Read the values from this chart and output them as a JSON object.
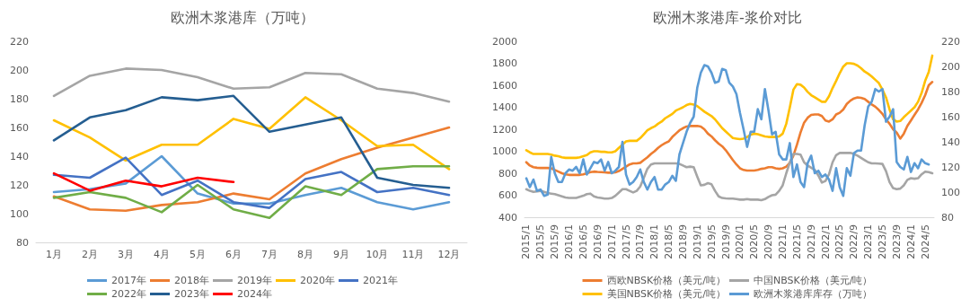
{
  "chart_data": [
    {
      "type": "line",
      "title": "欧洲木浆港库（万吨）",
      "categories": [
        "1月",
        "2月",
        "3月",
        "4月",
        "5月",
        "6月",
        "7月",
        "8月",
        "9月",
        "10月",
        "11月",
        "12月"
      ],
      "series": [
        {
          "name": "2017年",
          "color": "#5b9bd5",
          "values": [
            115,
            117,
            121,
            140,
            114,
            107,
            107,
            113,
            118,
            108,
            103,
            108
          ]
        },
        {
          "name": "2018年",
          "color": "#ed7d31",
          "values": [
            112,
            103,
            102,
            106,
            108,
            114,
            110,
            128,
            138,
            146,
            153,
            160
          ]
        },
        {
          "name": "2019年",
          "color": "#a5a5a5",
          "values": [
            182,
            196,
            201,
            200,
            195,
            187,
            188,
            198,
            197,
            187,
            184,
            178
          ]
        },
        {
          "name": "2020年",
          "color": "#ffc000",
          "values": [
            165,
            153,
            137,
            148,
            148,
            166,
            159,
            181,
            165,
            147,
            148,
            131
          ]
        },
        {
          "name": "2021年",
          "color": "#4472c4",
          "values": [
            127,
            125,
            139,
            113,
            123,
            108,
            104,
            124,
            129,
            115,
            118,
            113
          ]
        },
        {
          "name": "2022年",
          "color": "#70ad47",
          "values": [
            111,
            115,
            111,
            101,
            120,
            103,
            97,
            119,
            113,
            131,
            133,
            133
          ]
        },
        {
          "name": "2023年",
          "color": "#255e91",
          "values": [
            151,
            167,
            172,
            181,
            179,
            182,
            157,
            162,
            167,
            125,
            120,
            118
          ]
        },
        {
          "name": "2024年",
          "color": "#ff0000",
          "values": [
            128,
            116,
            123,
            119,
            125,
            122,
            null,
            null,
            null,
            null,
            null,
            null
          ]
        }
      ],
      "ylim": [
        80,
        220
      ],
      "yticks": [
        80,
        100,
        120,
        140,
        160,
        180,
        200,
        220
      ],
      "grid": false,
      "legend": "bottom",
      "marker": "none",
      "line_style": "solid"
    },
    {
      "type": "line",
      "title": "欧洲木浆港库-浆价对比",
      "categories": [
        "2015/1",
        null,
        null,
        null,
        "2015/5",
        null,
        null,
        null,
        "2015/9",
        null,
        null,
        null,
        "2016/1",
        null,
        null,
        null,
        "2016/5",
        null,
        null,
        null,
        "2016/9",
        null,
        null,
        null,
        "2017/1",
        null,
        null,
        null,
        "2017/5",
        null,
        null,
        null,
        "2017/9",
        null,
        null,
        null,
        "2018/1",
        null,
        null,
        null,
        "2018/5",
        null,
        null,
        null,
        "2018/9",
        null,
        null,
        null,
        "2019/1",
        null,
        null,
        null,
        "2019/5",
        null,
        null,
        null,
        "2019/9",
        null,
        null,
        null,
        "2020/1",
        null,
        null,
        null,
        "2020/5",
        null,
        null,
        null,
        "2020/9",
        null,
        null,
        null,
        "2021/1",
        null,
        null,
        null,
        "2021/5",
        null,
        null,
        null,
        "2021/9",
        null,
        null,
        null,
        "2022/1",
        null,
        null,
        null,
        "2022/5",
        null,
        null,
        null,
        "2022/9",
        null,
        null,
        null,
        "2023/1",
        null,
        null,
        null,
        "2023/5",
        null,
        null,
        null,
        "2023/9",
        null,
        null,
        null,
        "2024/1",
        null,
        null,
        null,
        "2024/5",
        null,
        null
      ],
      "series": [
        {
          "name": "西欧NBSK价格（美元/吨）",
          "color": "#ed7d31",
          "values": [
            900,
            870,
            855,
            850,
            848,
            848,
            848,
            845,
            830,
            815,
            800,
            790,
            785,
            785,
            785,
            785,
            790,
            800,
            810,
            815,
            812,
            810,
            808,
            805,
            805,
            808,
            820,
            840,
            860,
            880,
            890,
            890,
            895,
            920,
            945,
            975,
            1000,
            1030,
            1055,
            1075,
            1090,
            1130,
            1160,
            1190,
            1210,
            1225,
            1230,
            1230,
            1230,
            1225,
            1200,
            1160,
            1135,
            1100,
            1070,
            1045,
            1010,
            965,
            920,
            880,
            845,
            830,
            825,
            825,
            825,
            830,
            840,
            845,
            855,
            855,
            845,
            840,
            845,
            860,
            895,
            960,
            1060,
            1170,
            1260,
            1305,
            1330,
            1335,
            1335,
            1320,
            1280,
            1270,
            1290,
            1335,
            1350,
            1380,
            1430,
            1460,
            1480,
            1490,
            1485,
            1475,
            1450,
            1425,
            1405,
            1375,
            1340,
            1290,
            1250,
            1200,
            1170,
            1115,
            1160,
            1230,
            1280,
            1330,
            1380,
            1440,
            1510,
            1600,
            1630
          ]
        },
        {
          "name": "中国NBSK价格（美元/吨）",
          "color": "#a5a5a5",
          "values": [
            655,
            640,
            630,
            635,
            640,
            630,
            620,
            615,
            610,
            600,
            590,
            580,
            575,
            575,
            575,
            585,
            595,
            610,
            615,
            590,
            580,
            575,
            570,
            570,
            575,
            595,
            625,
            655,
            655,
            640,
            625,
            640,
            680,
            760,
            840,
            880,
            890,
            890,
            890,
            890,
            890,
            890,
            890,
            885,
            870,
            855,
            860,
            855,
            770,
            690,
            695,
            710,
            700,
            640,
            590,
            575,
            572,
            570,
            570,
            565,
            560,
            560,
            565,
            560,
            560,
            560,
            555,
            565,
            585,
            600,
            605,
            640,
            690,
            800,
            900,
            975,
            975,
            970,
            900,
            870,
            850,
            830,
            780,
            715,
            730,
            790,
            900,
            965,
            985,
            985,
            985,
            985,
            975,
            960,
            940,
            920,
            900,
            890,
            890,
            888,
            885,
            820,
            720,
            665,
            655,
            660,
            690,
            740,
            755,
            750,
            755,
            790,
            815,
            810,
            800
          ]
        },
        {
          "name": "美国NBSK价格（美元/吨）",
          "color": "#ffc000",
          "values": [
            1010,
            990,
            975,
            975,
            975,
            975,
            975,
            970,
            960,
            955,
            945,
            940,
            940,
            940,
            940,
            945,
            955,
            965,
            990,
            1000,
            1000,
            995,
            995,
            990,
            990,
            1000,
            1030,
            1060,
            1090,
            1095,
            1095,
            1095,
            1120,
            1155,
            1190,
            1210,
            1225,
            1250,
            1270,
            1300,
            1320,
            1340,
            1370,
            1385,
            1400,
            1420,
            1430,
            1425,
            1410,
            1385,
            1360,
            1340,
            1320,
            1290,
            1250,
            1210,
            1180,
            1150,
            1120,
            1115,
            1110,
            1115,
            1130,
            1150,
            1160,
            1155,
            1145,
            1135,
            1130,
            1130,
            1130,
            1135,
            1160,
            1250,
            1400,
            1560,
            1610,
            1605,
            1580,
            1540,
            1510,
            1490,
            1470,
            1450,
            1450,
            1500,
            1575,
            1640,
            1710,
            1770,
            1800,
            1800,
            1795,
            1780,
            1755,
            1725,
            1705,
            1680,
            1650,
            1620,
            1560,
            1490,
            1380,
            1290,
            1270,
            1275,
            1310,
            1340,
            1370,
            1400,
            1450,
            1530,
            1640,
            1720,
            1870
          ]
        },
        {
          "name": "欧洲木浆港库库存（万吨）",
          "color": "#5b9bd5",
          "axis": "y2",
          "values": [
            111,
            104,
            110,
            101,
            102,
            97,
            98,
            128,
            115,
            108,
            108,
            115,
            118,
            117,
            120,
            115,
            126,
            114,
            119,
            124,
            123,
            126,
            117,
            124,
            115,
            117,
            120,
            140,
            114,
            106,
            108,
            112,
            118,
            108,
            102,
            108,
            112,
            102,
            102,
            106,
            108,
            113,
            109,
            130,
            139,
            148,
            155,
            160,
            183,
            195,
            201,
            200,
            195,
            187,
            188,
            198,
            197,
            187,
            184,
            178,
            163,
            150,
            136,
            148,
            148,
            166,
            158,
            182,
            165,
            146,
            148,
            130,
            126,
            126,
            139,
            112,
            122,
            108,
            104,
            123,
            129,
            115,
            117,
            112,
            114,
            110,
            101,
            119,
            104,
            97,
            119,
            113,
            131,
            133,
            133,
            153,
            168,
            172,
            182,
            180,
            182,
            156,
            160,
            166,
            124,
            120,
            118,
            128,
            116,
            123,
            119,
            126,
            123,
            122,
            null
          ]
        }
      ],
      "ylim": [
        400,
        2000
      ],
      "yticks": [
        400,
        600,
        800,
        1000,
        1200,
        1400,
        1600,
        1800,
        2000
      ],
      "y2lim": [
        80,
        220
      ],
      "y2ticks": [
        80,
        100,
        120,
        140,
        160,
        180,
        200,
        220
      ],
      "grid": false,
      "legend": "bottom",
      "marker": "none",
      "line_style": "solid"
    }
  ]
}
